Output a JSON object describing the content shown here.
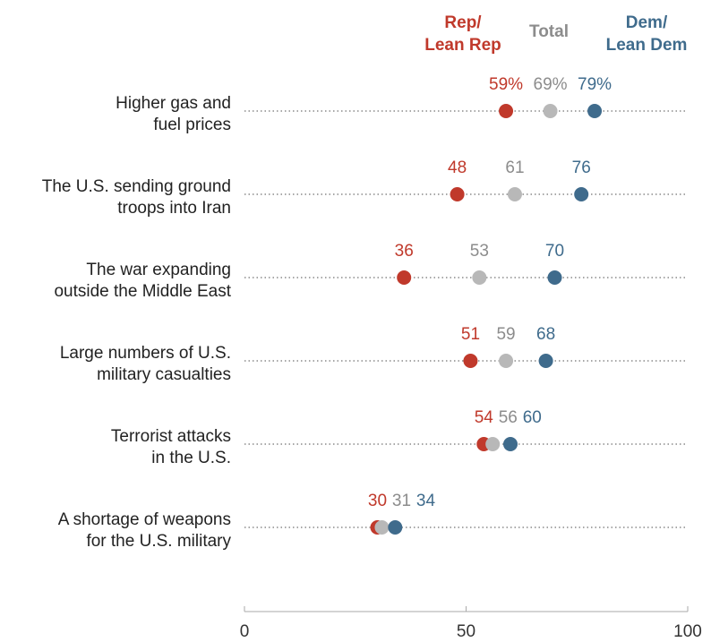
{
  "chart_data": {
    "type": "dot",
    "legend": {
      "rep": [
        "Rep/",
        "Lean Rep"
      ],
      "total": "Total",
      "dem": [
        "Dem/",
        "Lean Dem"
      ]
    },
    "categories": [
      [
        "Higher gas and",
        "fuel prices"
      ],
      [
        "The U.S. sending ground",
        "troops into Iran"
      ],
      [
        "The war expanding",
        "outside the Middle East"
      ],
      [
        "Large numbers of U.S.",
        "military casualties"
      ],
      [
        "Terrorist attacks",
        "in the U.S."
      ],
      [
        "A shortage of weapons",
        "for the U.S. military"
      ]
    ],
    "series": [
      {
        "name": "Rep/Lean Rep",
        "key": "rep",
        "color": "#c0392b",
        "values": [
          59,
          48,
          36,
          51,
          54,
          30
        ]
      },
      {
        "name": "Total",
        "key": "total",
        "color": "#b8b8b8",
        "values": [
          69,
          61,
          53,
          59,
          56,
          31
        ]
      },
      {
        "name": "Dem/Lean Dem",
        "key": "dem",
        "color": "#3f6b8c",
        "values": [
          79,
          76,
          70,
          68,
          60,
          34
        ]
      }
    ],
    "label_colors": {
      "rep": "#c0392b",
      "total": "#8c8c8c",
      "dem": "#3f6b8c"
    },
    "percent_on_first_row": true,
    "xlim": [
      0,
      100
    ],
    "xticks": [
      0,
      50,
      100
    ],
    "xtick_labels": [
      "0",
      "50",
      "100"
    ],
    "grid": "dotted row lines"
  }
}
